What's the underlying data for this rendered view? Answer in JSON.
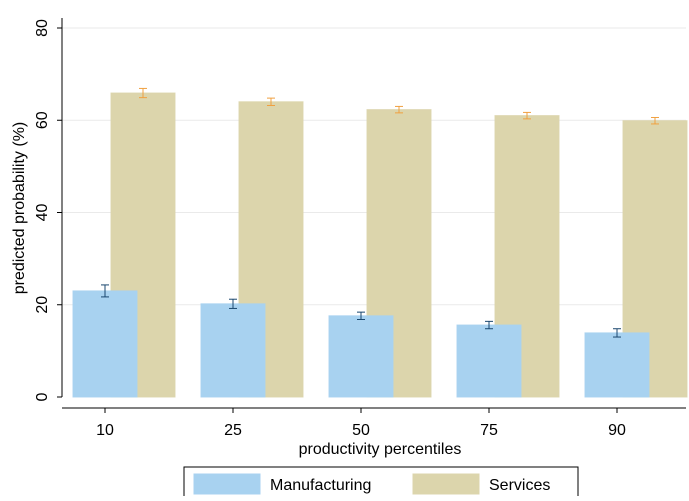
{
  "chart_data": {
    "type": "bar",
    "categories": [
      "10",
      "25",
      "50",
      "75",
      "90"
    ],
    "series": [
      {
        "name": "Manufacturing",
        "color": "#a8d2f0",
        "error_color": "#1a476f",
        "values": [
          23.0,
          20.2,
          17.6,
          15.6,
          13.9
        ],
        "errors": [
          1.3,
          1.0,
          0.8,
          0.8,
          0.9
        ]
      },
      {
        "name": "Services",
        "color": "#dcd5ac",
        "error_color": "#f0a040",
        "values": [
          65.9,
          64.0,
          62.3,
          61.0,
          59.9
        ],
        "errors": [
          1.0,
          0.8,
          0.7,
          0.7,
          0.7
        ]
      }
    ],
    "xlabel": "productivity percentiles",
    "ylabel": "predicted probability (%)",
    "ylim": [
      0,
      80
    ],
    "yticks": [
      0,
      20,
      40,
      60,
      80
    ],
    "grid": true,
    "legend": "bottom"
  }
}
